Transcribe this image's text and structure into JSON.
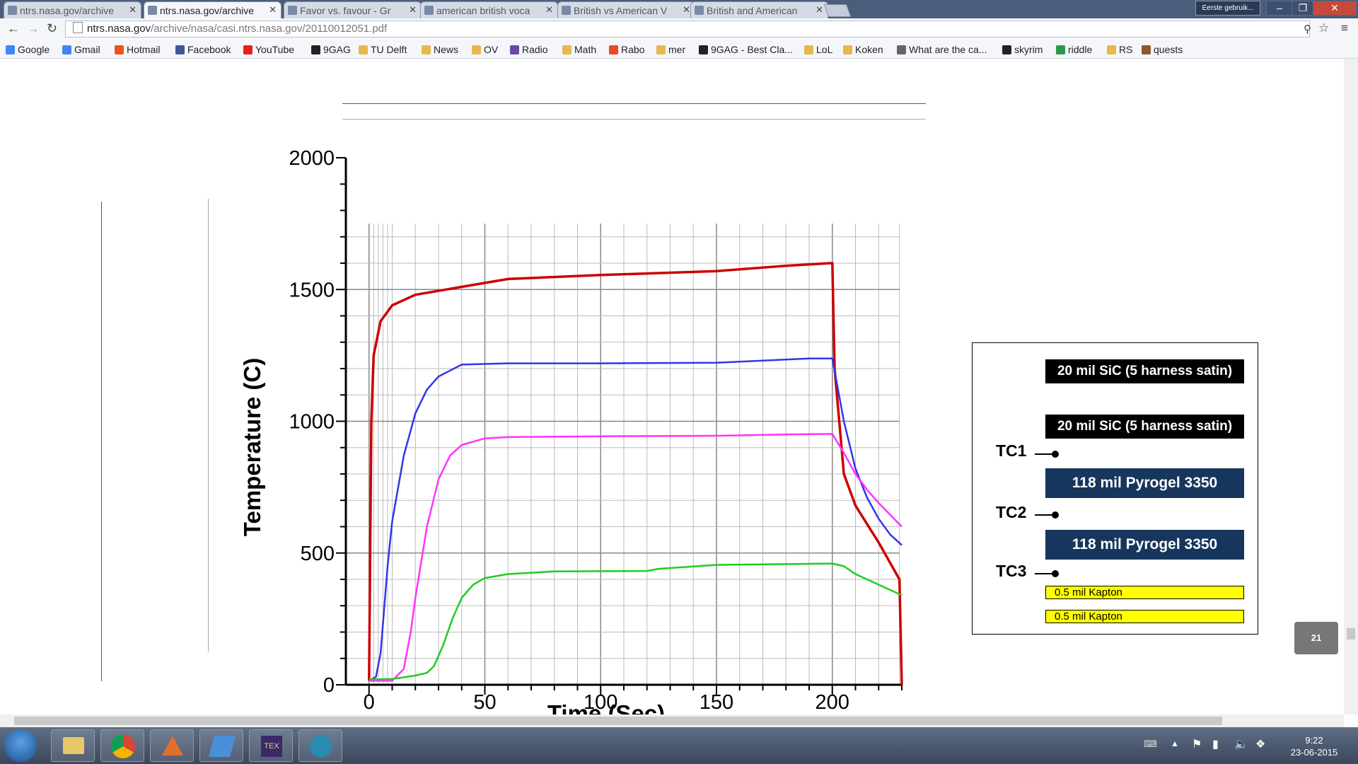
{
  "tabs": [
    {
      "label": "ntrs.nasa.gov/archive",
      "icon": "nasa-icon",
      "active": false
    },
    {
      "label": "ntrs.nasa.gov/archive",
      "icon": "nasa-icon",
      "active": true
    },
    {
      "label": "Favor vs. favour - Gr",
      "icon": "grammarist-icon",
      "active": false
    },
    {
      "label": "american british voca",
      "icon": "google-icon",
      "active": false
    },
    {
      "label": "British vs American V",
      "icon": "site-icon",
      "active": false
    },
    {
      "label": "British and American",
      "icon": "site-icon",
      "active": false
    }
  ],
  "profile": "Eerste gebruik...",
  "url": {
    "host": "ntrs.nasa.gov",
    "path": "/archive/nasa/casi.ntrs.nasa.gov/20110012051.pdf"
  },
  "bookmarks": [
    "Google",
    "Gmail",
    "Hotmail",
    "Facebook",
    "YouTube",
    "9GAG",
    "TU Delft",
    "News",
    "OV",
    "Radio",
    "Math",
    "Rabo",
    "mer",
    "9GAG - Best Cla...",
    "LoL",
    "Koken",
    "What are the ca...",
    "skyrim",
    "riddle",
    "RS",
    "quests"
  ],
  "chart_data": {
    "type": "line",
    "xlabel": "Time (Sec)",
    "ylabel": "Temperature (C)",
    "xlim": [
      -10,
      230
    ],
    "ylim": [
      0,
      2000
    ],
    "x_ticks": [
      0,
      50,
      100,
      150,
      200
    ],
    "y_ticks": [
      0,
      500,
      1000,
      1500,
      2000
    ],
    "grid": true,
    "series": [
      {
        "color": "#cc0000",
        "x": [
          0,
          1,
          2,
          5,
          10,
          20,
          40,
          60,
          100,
          150,
          180,
          199,
          200,
          201,
          205,
          210,
          220,
          229,
          230
        ],
        "y": [
          15,
          1000,
          1250,
          1380,
          1440,
          1480,
          1510,
          1540,
          1555,
          1570,
          1590,
          1600,
          1600,
          1200,
          800,
          680,
          540,
          400,
          0
        ]
      },
      {
        "color": "#3333ee",
        "x": [
          0,
          3,
          5,
          8,
          10,
          15,
          20,
          25,
          30,
          40,
          60,
          100,
          150,
          190,
          200,
          205,
          210,
          215,
          220,
          225,
          230
        ],
        "y": [
          15,
          30,
          120,
          450,
          620,
          870,
          1030,
          1120,
          1170,
          1215,
          1220,
          1220,
          1222,
          1238,
          1238,
          1000,
          820,
          710,
          630,
          570,
          530
        ]
      },
      {
        "color": "#ff33ff",
        "x": [
          0,
          10,
          15,
          18,
          20,
          25,
          30,
          35,
          40,
          50,
          60,
          100,
          150,
          180,
          200,
          205,
          210,
          215,
          220,
          230
        ],
        "y": [
          15,
          15,
          60,
          200,
          330,
          600,
          780,
          870,
          910,
          935,
          940,
          943,
          945,
          950,
          952,
          880,
          800,
          740,
          690,
          600
        ]
      },
      {
        "color": "#22cc22",
        "x": [
          0,
          10,
          20,
          25,
          28,
          32,
          36,
          40,
          45,
          50,
          60,
          80,
          120,
          125,
          150,
          200,
          205,
          210,
          220,
          230
        ],
        "y": [
          20,
          22,
          35,
          45,
          70,
          150,
          250,
          330,
          380,
          405,
          420,
          430,
          432,
          440,
          455,
          460,
          450,
          420,
          380,
          340
        ]
      }
    ]
  },
  "legend": {
    "sic1": "20 mil SiC (5 harness satin)",
    "sic2": "20 mil SiC (5 harness satin)",
    "tc1": "TC1",
    "pyro1": "118 mil Pyrogel 3350",
    "tc2": "TC2",
    "pyro2": "118 mil Pyrogel 3350",
    "tc3": "TC3",
    "kapton1": "0.5 mil Kapton",
    "kapton2": "0.5 mil Kapton"
  },
  "page_badge": "21",
  "clock": {
    "time": "9:22",
    "date": "23-06-2015"
  }
}
